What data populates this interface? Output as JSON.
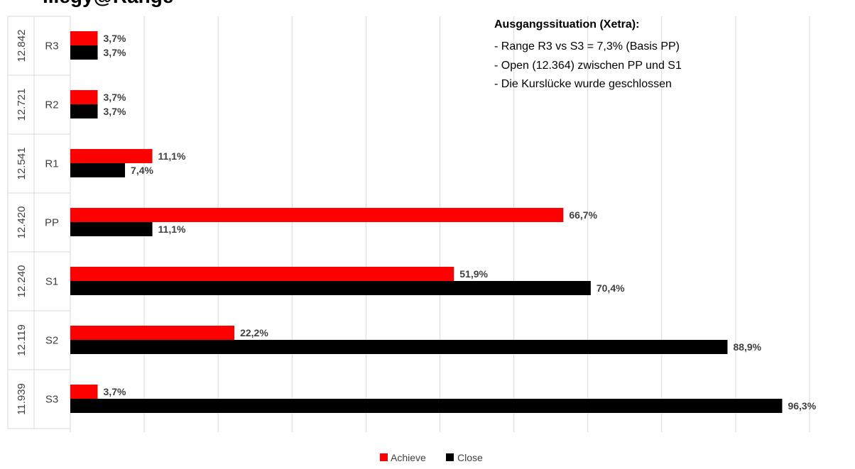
{
  "title_fragment": "...egy@Range",
  "colors": {
    "achieve": "#ff0000",
    "close": "#000000",
    "grid": "#d9d9d9",
    "label": "#404040"
  },
  "annotation": {
    "title": "Ausgangssituation (Xetra):",
    "lines": [
      "- Range R3 vs S3 = 7,3% (Basis PP)",
      "- Open (12.364) zwischen PP und S1",
      "- Die Kurslücke wurde geschlossen"
    ]
  },
  "chart_data": {
    "type": "bar",
    "orientation": "horizontal",
    "categories": [
      {
        "level": "R3",
        "price": "12.842"
      },
      {
        "level": "R2",
        "price": "12.721"
      },
      {
        "level": "R1",
        "price": "12.541"
      },
      {
        "level": "PP",
        "price": "12.420"
      },
      {
        "level": "S1",
        "price": "12.240"
      },
      {
        "level": "S2",
        "price": "12.119"
      },
      {
        "level": "S3",
        "price": "11.939"
      }
    ],
    "series": [
      {
        "name": "Achieve",
        "values": [
          3.7,
          3.7,
          11.1,
          66.7,
          51.9,
          22.2,
          3.7
        ],
        "labels": [
          "3,7%",
          "3,7%",
          "11,1%",
          "66,7%",
          "51,9%",
          "22,2%",
          "3,7%"
        ]
      },
      {
        "name": "Close",
        "values": [
          3.7,
          3.7,
          7.4,
          11.1,
          70.4,
          88.9,
          96.3
        ],
        "labels": [
          "3,7%",
          "3,7%",
          "7,4%",
          "11,1%",
          "70,4%",
          "88,9%",
          "96,3%"
        ]
      }
    ],
    "xlim": [
      0,
      100
    ],
    "grid": true,
    "legend": "bottom-center"
  }
}
